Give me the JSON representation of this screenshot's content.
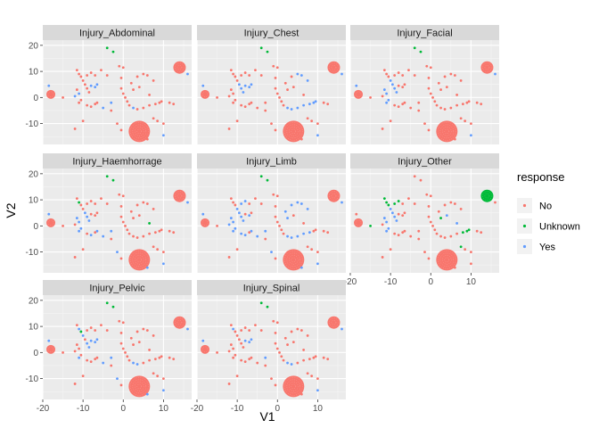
{
  "chart_data": {
    "type": "scatter",
    "xlabel": "V1",
    "ylabel": "V2",
    "xlim": [
      -20,
      17
    ],
    "ylim": [
      -18,
      22
    ],
    "x_ticks": [
      -20,
      -10,
      0,
      10
    ],
    "y_ticks": [
      -10,
      0,
      10,
      20
    ],
    "grid": true,
    "legend": {
      "title": "response",
      "position": "right",
      "entries": [
        {
          "label": "No",
          "color": "#F8766D"
        },
        {
          "label": "Unknown",
          "color": "#00BA38"
        },
        {
          "label": "Yes",
          "color": "#619CFF"
        }
      ]
    },
    "base_points": [
      {
        "name": "red-blob-lower",
        "x": 4,
        "y": -13,
        "response": "No",
        "cluster": true
      },
      {
        "name": "red-blob-upper-right",
        "x": 14,
        "y": 11.5,
        "response": "No",
        "cluster": true
      },
      {
        "name": "red-blob-left",
        "x": -18,
        "y": 1.2,
        "response": "No",
        "cluster": true
      },
      {
        "x": -4,
        "y": 19,
        "response": "Unknown"
      },
      {
        "x": -2.5,
        "y": 17.5,
        "response": "Unknown"
      },
      {
        "x": -18.5,
        "y": 4.5,
        "response": "Yes"
      },
      {
        "x": 16,
        "y": 9,
        "response": "Yes"
      },
      {
        "x": 10,
        "y": -14.5,
        "response": "Yes"
      },
      {
        "x": -12,
        "y": 0.5,
        "response": "Yes"
      },
      {
        "x": -15,
        "y": 0,
        "response": "No"
      },
      {
        "x": -11.5,
        "y": 10.5,
        "response": "No"
      },
      {
        "x": -11,
        "y": 9,
        "response": "No"
      },
      {
        "x": -10.5,
        "y": 8,
        "response": "No"
      },
      {
        "x": -10,
        "y": 6.5,
        "response": "No"
      },
      {
        "x": -9.5,
        "y": 5,
        "response": "No"
      },
      {
        "x": -9,
        "y": 3.5,
        "response": "No"
      },
      {
        "x": -8.5,
        "y": 2,
        "response": "No"
      },
      {
        "x": -11.5,
        "y": 3,
        "response": "No"
      },
      {
        "x": -11,
        "y": 1.5,
        "response": "No"
      },
      {
        "x": -10.5,
        "y": -1,
        "response": "No"
      },
      {
        "x": -11,
        "y": -2,
        "response": "No"
      },
      {
        "x": -9,
        "y": 8.5,
        "response": "No"
      },
      {
        "x": -8,
        "y": 9.5,
        "response": "No"
      },
      {
        "x": -7,
        "y": 8.5,
        "response": "No"
      },
      {
        "x": -6.5,
        "y": 5,
        "response": "No"
      },
      {
        "x": -8,
        "y": 4.5,
        "response": "No"
      },
      {
        "x": -7,
        "y": 4,
        "response": "No"
      },
      {
        "x": -9,
        "y": -3,
        "response": "No"
      },
      {
        "x": -8,
        "y": -3.5,
        "response": "No"
      },
      {
        "x": -6.5,
        "y": -2,
        "response": "No"
      },
      {
        "x": -5,
        "y": -4,
        "response": "No"
      },
      {
        "x": -3,
        "y": -2,
        "response": "No"
      },
      {
        "x": -3,
        "y": -5,
        "response": "No"
      },
      {
        "x": -5.5,
        "y": 10.5,
        "response": "No"
      },
      {
        "x": -4,
        "y": 8.5,
        "response": "No"
      },
      {
        "x": -0.5,
        "y": 7.5,
        "response": "No"
      },
      {
        "x": 2,
        "y": 5.5,
        "response": "No"
      },
      {
        "x": 3.5,
        "y": 8,
        "response": "No"
      },
      {
        "x": 5,
        "y": 9,
        "response": "No"
      },
      {
        "x": 6,
        "y": 8.5,
        "response": "No"
      },
      {
        "x": 7.5,
        "y": 6.5,
        "response": "No"
      },
      {
        "x": -0.5,
        "y": 3.5,
        "response": "No"
      },
      {
        "x": 0,
        "y": 1.5,
        "response": "No"
      },
      {
        "x": 0.5,
        "y": 0,
        "response": "No"
      },
      {
        "x": 1,
        "y": -1.5,
        "response": "No"
      },
      {
        "x": 1.5,
        "y": -3,
        "response": "No"
      },
      {
        "x": 2.5,
        "y": -4,
        "response": "No"
      },
      {
        "x": 3.5,
        "y": -4.5,
        "response": "No"
      },
      {
        "x": 5,
        "y": -4,
        "response": "No"
      },
      {
        "x": 6.5,
        "y": -3,
        "response": "No"
      },
      {
        "x": 8,
        "y": -2.5,
        "response": "No"
      },
      {
        "x": 9,
        "y": -2,
        "response": "No"
      },
      {
        "x": 9.5,
        "y": -1.5,
        "response": "No"
      },
      {
        "x": 2.5,
        "y": 3,
        "response": "No"
      },
      {
        "x": 4,
        "y": 4,
        "response": "No"
      },
      {
        "x": 6.5,
        "y": 1,
        "response": "No"
      },
      {
        "x": 7.5,
        "y": -8,
        "response": "No"
      },
      {
        "x": 8.5,
        "y": -9,
        "response": "No"
      },
      {
        "x": 11.5,
        "y": -2,
        "response": "No"
      },
      {
        "x": 12.5,
        "y": -2.5,
        "response": "No"
      },
      {
        "x": 10,
        "y": -10,
        "response": "No"
      },
      {
        "x": -12,
        "y": -12,
        "response": "No"
      },
      {
        "x": -0.5,
        "y": -12.5,
        "response": "No"
      },
      {
        "x": -1.5,
        "y": -10,
        "response": "No"
      },
      {
        "x": 6,
        "y": -16,
        "response": "No"
      },
      {
        "x": -10,
        "y": -9,
        "response": "No"
      },
      {
        "x": 0,
        "y": 11.5,
        "response": "No"
      },
      {
        "x": -1,
        "y": 12,
        "response": "No"
      },
      {
        "x": -7,
        "y": -2.5,
        "response": "No"
      }
    ],
    "panels": [
      {
        "name": "Injury_Abdominal",
        "overrides": {
          "18": "Yes",
          "24": "Yes",
          "25": "Yes",
          "26": "Yes",
          "30": "Yes",
          "31": "Yes",
          "46": "Yes"
        }
      },
      {
        "name": "Injury_Chest",
        "overrides": {
          "14": "Yes",
          "15": "Yes",
          "16": "Yes",
          "24": "Yes",
          "25": "Yes",
          "26": "Yes",
          "38": "Yes",
          "39": "Yes",
          "40": "Yes",
          "46": "Yes",
          "47": "Yes",
          "48": "Yes",
          "49": "Yes",
          "50": "Yes",
          "51": "Yes",
          "52": "Yes",
          "8": "No"
        }
      },
      {
        "name": "Injury_Facial",
        "overrides": {
          "0": "Yes",
          "13": "Yes",
          "14": "Yes",
          "15": "Yes",
          "16": "Yes",
          "17": "Yes",
          "18": "Yes",
          "19": "Yes",
          "20": "Yes",
          "8": "No"
        }
      },
      {
        "name": "Injury_Haemhorrage",
        "overrides": {
          "11": "Unknown",
          "14": "Yes",
          "15": "Yes",
          "16": "Yes",
          "17": "Yes",
          "18": "Yes",
          "19": "Yes",
          "20": "Yes",
          "28": "Yes",
          "29": "Yes",
          "30": "Yes",
          "31": "Yes",
          "63": "Yes",
          "64": "Yes",
          "55": "Unknown",
          "8": "No"
        }
      },
      {
        "name": "Injury_Limb",
        "overrides": {
          "13": "Yes",
          "14": "Yes",
          "15": "Yes",
          "16": "Yes",
          "17": "Yes",
          "18": "Yes",
          "19": "Yes",
          "20": "Yes",
          "21": "Yes",
          "22": "Yes",
          "26": "Yes",
          "27": "Yes",
          "28": "Yes",
          "29": "Yes",
          "30": "Yes",
          "31": "Yes",
          "36": "Yes",
          "37": "Yes",
          "38": "Yes",
          "39": "Yes",
          "40": "Yes",
          "46": "Yes",
          "47": "Yes",
          "48": "Yes",
          "49": "Yes",
          "50": "Yes",
          "53": "Yes",
          "63": "Yes",
          "64": "Yes"
        }
      },
      {
        "name": "Injury_Other",
        "blob_overrides": {
          "1": "Unknown"
        },
        "overrides": {
          "3": "No",
          "4": "No",
          "5": "No",
          "6": "No",
          "7": "No",
          "8": "No",
          "9": "Unknown",
          "10": "Unknown",
          "11": "Unknown",
          "12": "Unknown",
          "21": "Unknown",
          "22": "Unknown",
          "13": "Yes",
          "14": "Yes",
          "15": "Yes",
          "16": "Yes",
          "17": "Yes",
          "18": "Yes",
          "19": "Yes",
          "20": "Yes",
          "50": "Unknown",
          "51": "Unknown",
          "52": "Unknown",
          "53": "Unknown",
          "54": "Yes",
          "55": "Yes",
          "56": "Unknown"
        }
      },
      {
        "name": "Injury_Pelvic",
        "overrides": {
          "11": "Yes",
          "12": "Unknown",
          "13": "Yes",
          "15": "Yes",
          "16": "Yes",
          "20": "Yes",
          "24": "Yes",
          "25": "Yes",
          "26": "Yes",
          "30": "Yes",
          "31": "Yes",
          "46": "Yes",
          "47": "Yes",
          "63": "Yes",
          "64": "Yes",
          "8": "No"
        }
      },
      {
        "name": "Injury_Spinal",
        "overrides": {
          "11": "Yes",
          "24": "Yes",
          "25": "Yes",
          "26": "Yes",
          "31": "Yes",
          "46": "Yes",
          "47": "Yes",
          "8": "No"
        }
      }
    ]
  }
}
